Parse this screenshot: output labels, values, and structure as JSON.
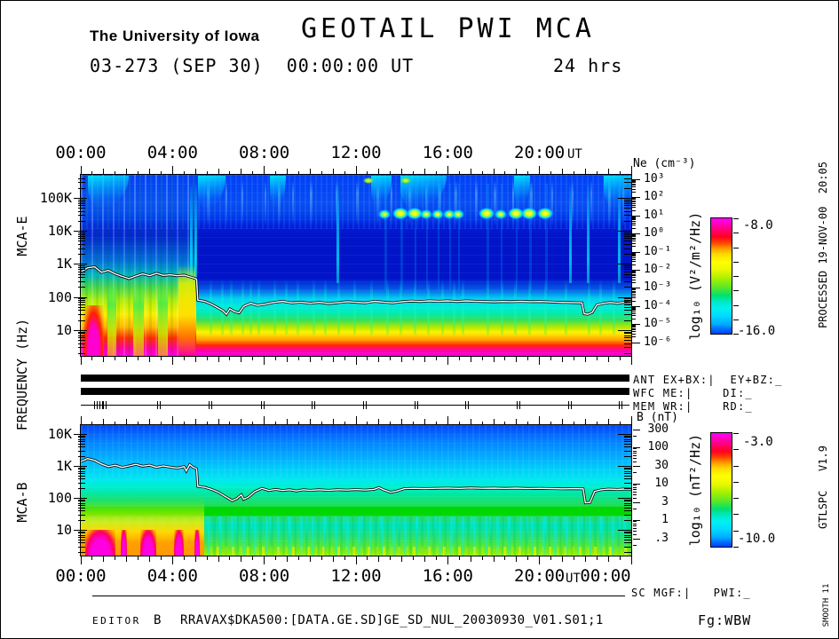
{
  "header": {
    "institution": "The University of Iowa",
    "title": "GEOTAIL  PWI  MCA",
    "date_line": "03-273 (SEP 30)  00:00:00 UT",
    "duration": "24 hrs"
  },
  "time_axis": {
    "labels": [
      "00:00",
      "04:00",
      "08:00",
      "12:00",
      "16:00",
      "20:00"
    ],
    "end_label": "00:00",
    "ut": "UT"
  },
  "left_axis": {
    "mca_e": "MCA-E",
    "shared": "FREQUENCY (Hz)",
    "mca_b": "MCA-B"
  },
  "side_notes": {
    "processed": "PROCESSED 19-NOV-00  20:05",
    "version": "GTLSPC   V1.9",
    "smooth": "SMOOTH 11"
  },
  "status": {
    "ant": "ANT EX+BX:|  EY+BZ:_",
    "wfc": "WFC ME:|    DI:_",
    "mem": "MEM WR:|    RD:_",
    "mem_event_hours": [
      0.65,
      0.9,
      1.06,
      3.4,
      5.66,
      7.93,
      10.14,
      12.4,
      14.63,
      16.85,
      19.08,
      21.32,
      23.55
    ]
  },
  "scales": {
    "ne": {
      "label": "Ne (cm⁻³)",
      "ticks": [
        "10³",
        "10²",
        "10¹",
        "10⁰",
        "10⁻¹",
        "10⁻²",
        "10⁻³",
        "10⁻⁴",
        "10⁻⁵",
        "10⁻⁶"
      ]
    },
    "b": {
      "label": "B (nT)",
      "ticks": [
        "300",
        "100",
        "30",
        "10",
        "3",
        "1",
        ".3"
      ],
      "tick_values": [
        300,
        100,
        30,
        10,
        3,
        1,
        0.3
      ]
    }
  },
  "colorbars": {
    "e": {
      "label": "log₁₀ (V²/m²/Hz)",
      "max": "-8.0",
      "min": "-16.0"
    },
    "b": {
      "label": "log₁₀ (nT²/Hz)",
      "max": "-3.0",
      "min": "-10.0"
    }
  },
  "footer": {
    "sc": "SC MGF:|   PWI:_",
    "editor_label": "EDITOR",
    "editor_value": "B",
    "file": "RRAVAX$DKA500:[DATA.GE.SD]GE_SD_NUL_20030930_V01.S01;1",
    "fg": "Fg:WBW"
  },
  "chart_data": [
    {
      "id": "mca_e",
      "type": "heatmap",
      "name": "MCA-E electric field spectrogram",
      "x": {
        "label": "UT",
        "unit": "hours",
        "range": [
          0,
          24
        ],
        "major_tick_h": 4,
        "minor_tick_h": 0.5,
        "tick_labels": [
          "00:00",
          "04:00",
          "08:00",
          "12:00",
          "16:00",
          "20:00"
        ]
      },
      "y": {
        "label": "FREQUENCY (Hz)",
        "scale": "log",
        "range_hz": [
          1.6,
          500000
        ],
        "ticks": [
          {
            "label": "100K",
            "f": 100000
          },
          {
            "label": "10K",
            "f": 10000
          },
          {
            "label": "1K",
            "f": 1000
          },
          {
            "label": "100",
            "f": 100
          },
          {
            "label": "10",
            "f": 10
          }
        ]
      },
      "z": {
        "label": "log₁₀ (V²/m²/Hz)",
        "range": [
          -16,
          -8
        ],
        "colormap": [
          "#0040FF",
          "#00A8FF",
          "#00E8F0",
          "#00E070",
          "#A8F000",
          "#FFFF00",
          "#FF9800",
          "#FF0020",
          "#FF00F0"
        ]
      },
      "aux_scale": {
        "label": "Ne (cm⁻³)",
        "tick_labels": [
          "10³",
          "10²",
          "10¹",
          "10⁰",
          "10⁻¹",
          "10⁻²",
          "10⁻³",
          "10⁻⁴",
          "10⁻⁵",
          "10⁻⁶"
        ]
      },
      "trace": {
        "name": "plasma-cutoff-trace",
        "points": [
          [
            0,
            570
          ],
          [
            0.3,
            760
          ],
          [
            0.6,
            820
          ],
          [
            0.9,
            560
          ],
          [
            1.2,
            640
          ],
          [
            1.5,
            500
          ],
          [
            1.8,
            420
          ],
          [
            2.1,
            360
          ],
          [
            2.4,
            430
          ],
          [
            2.7,
            500
          ],
          [
            3.0,
            440
          ],
          [
            3.3,
            520
          ],
          [
            3.6,
            450
          ],
          [
            3.9,
            470
          ],
          [
            4.2,
            440
          ],
          [
            4.5,
            460
          ],
          [
            4.7,
            420
          ],
          [
            4.9,
            380
          ],
          [
            5.0,
            360
          ],
          [
            5.05,
            340
          ],
          [
            5.1,
            80
          ],
          [
            5.4,
            74
          ],
          [
            5.7,
            60
          ],
          [
            6.0,
            46
          ],
          [
            6.2,
            38
          ],
          [
            6.35,
            30
          ],
          [
            6.5,
            44
          ],
          [
            6.7,
            36
          ],
          [
            6.9,
            33
          ],
          [
            7.1,
            52
          ],
          [
            7.4,
            64
          ],
          [
            7.7,
            56
          ],
          [
            8.0,
            60
          ],
          [
            8.4,
            68
          ],
          [
            8.8,
            74
          ],
          [
            9.2,
            66
          ],
          [
            9.6,
            70
          ],
          [
            10.0,
            64
          ],
          [
            10.4,
            69
          ],
          [
            10.8,
            63
          ],
          [
            11.2,
            67
          ],
          [
            11.6,
            72
          ],
          [
            12.0,
            69
          ],
          [
            12.4,
            66
          ],
          [
            12.8,
            74
          ],
          [
            13.2,
            70
          ],
          [
            13.6,
            66
          ],
          [
            14.0,
            72
          ],
          [
            14.4,
            75
          ],
          [
            14.8,
            73
          ],
          [
            15.2,
            76
          ],
          [
            15.6,
            74
          ],
          [
            16.0,
            76
          ],
          [
            16.4,
            73
          ],
          [
            16.8,
            76
          ],
          [
            17.2,
            74
          ],
          [
            17.6,
            73
          ],
          [
            18.0,
            71
          ],
          [
            18.4,
            73
          ],
          [
            18.8,
            72
          ],
          [
            19.2,
            74
          ],
          [
            19.6,
            72
          ],
          [
            20.0,
            73
          ],
          [
            20.4,
            71
          ],
          [
            20.8,
            69
          ],
          [
            21.2,
            68
          ],
          [
            21.6,
            67
          ],
          [
            21.85,
            66
          ],
          [
            21.95,
            31
          ],
          [
            22.1,
            30
          ],
          [
            22.3,
            34
          ],
          [
            22.5,
            58
          ],
          [
            22.8,
            64
          ],
          [
            23.1,
            68
          ],
          [
            23.4,
            64
          ],
          [
            23.7,
            69
          ],
          [
            24,
            67
          ]
        ]
      },
      "features": {
        "active_region": {
          "t0": 0,
          "t1": 5.05,
          "top_hz": 900
        },
        "plumes": [
          {
            "t0": 0.12,
            "t1": 1.0,
            "top_hz": 55,
            "kind": "hot"
          },
          {
            "t0": 1.15,
            "t1": 1.55,
            "top_hz": 280,
            "kind": "green"
          },
          {
            "t0": 2.3,
            "t1": 2.75,
            "top_hz": 240,
            "kind": "green"
          },
          {
            "t0": 3.35,
            "t1": 3.8,
            "top_hz": 300,
            "kind": "green"
          },
          {
            "t0": 4.25,
            "t1": 5.0,
            "top_hz": 900,
            "kind": "yellow"
          }
        ],
        "wisps": [
          {
            "t": 0.3,
            "dur": 1.8
          },
          {
            "t": 5.1,
            "dur": 1.2
          },
          {
            "t": 8.25,
            "dur": 0.7
          },
          {
            "t": 12.65,
            "dur": 0.9
          },
          {
            "t": 13.95,
            "dur": 2.0
          },
          {
            "t": 18.9,
            "dur": 0.7
          },
          {
            "t": 22.8,
            "dur": 1.7
          }
        ],
        "top_spot_hours": [
          12.55,
          14.15
        ],
        "band_streak_hours": [
          4.75,
          4.95,
          11.15,
          21.3,
          22.05,
          23.4
        ],
        "upper_streak_hours": [
          5.5,
          6.3,
          7.0,
          8.0,
          8.6,
          9.2,
          10.0,
          11.1,
          12.0,
          12.9,
          13.5,
          14.3,
          15.0,
          15.6,
          16.3,
          17.2,
          18.0,
          18.8,
          19.6,
          20.5,
          21.4,
          22.2,
          23.0,
          23.6
        ],
        "sub_streak_hours": [
          5.6,
          6.1,
          6.5,
          7.0,
          7.35,
          7.7,
          8.4,
          8.9,
          9.4,
          10.1,
          10.6,
          11.2,
          11.9,
          12.6,
          13.3,
          13.9,
          14.5,
          15.1,
          15.7,
          16.2,
          16.6,
          17.7,
          18.3,
          18.9,
          19.5,
          20.2,
          21.1,
          22.1,
          22.6,
          23.2
        ],
        "akr_dot_hours": [
          13.25,
          13.95,
          14.55,
          15.05,
          15.55,
          16.05,
          16.45,
          17.7,
          18.3,
          18.95,
          19.55,
          20.25
        ],
        "akr_bright_hours": [
          13.95,
          14.55,
          17.7,
          18.95,
          19.55,
          20.25
        ],
        "akr_dot_freq_hz": 25000
      }
    },
    {
      "id": "mca_b",
      "type": "heatmap",
      "name": "MCA-B magnetic field spectrogram",
      "x": {
        "label": "UT",
        "unit": "hours",
        "range": [
          0,
          24
        ],
        "major_tick_h": 4,
        "minor_tick_h": 0.5,
        "tick_labels": [
          "00:00",
          "04:00",
          "08:00",
          "12:00",
          "16:00",
          "20:00",
          "00:00"
        ]
      },
      "y": {
        "label": "FREQUENCY (Hz)",
        "scale": "log",
        "range_hz": [
          1.6,
          19000
        ],
        "ticks": [
          {
            "label": "10K",
            "f": 10000
          },
          {
            "label": "1K",
            "f": 1000
          },
          {
            "label": "100",
            "f": 100
          },
          {
            "label": "10",
            "f": 10
          }
        ]
      },
      "z": {
        "label": "log₁₀ (nT²/Hz)",
        "range": [
          -10,
          -3
        ],
        "colormap": [
          "#0040FF",
          "#00A8FF",
          "#00E8F0",
          "#00E070",
          "#A8F000",
          "#FFFF00",
          "#FF9800",
          "#FF0020",
          "#FF00F0"
        ]
      },
      "aux_scale": {
        "label": "B (nT)",
        "tick_labels": [
          "300",
          "100",
          "30",
          "10",
          "3",
          "1",
          ".3"
        ]
      },
      "trace": {
        "name": "cyclotron-trace",
        "points": [
          [
            0,
            1380
          ],
          [
            0.3,
            1700
          ],
          [
            0.6,
            1500
          ],
          [
            0.9,
            1150
          ],
          [
            1.2,
            950
          ],
          [
            1.5,
            1050
          ],
          [
            1.8,
            900
          ],
          [
            2.1,
            1000
          ],
          [
            2.4,
            1120
          ],
          [
            2.7,
            980
          ],
          [
            3.0,
            1060
          ],
          [
            3.3,
            900
          ],
          [
            3.6,
            1000
          ],
          [
            3.9,
            920
          ],
          [
            4.2,
            860
          ],
          [
            4.5,
            950
          ],
          [
            4.6,
            700
          ],
          [
            4.75,
            1100
          ],
          [
            4.9,
            900
          ],
          [
            5.0,
            850
          ],
          [
            5.05,
            800
          ],
          [
            5.1,
            230
          ],
          [
            5.4,
            215
          ],
          [
            5.7,
            185
          ],
          [
            6.0,
            150
          ],
          [
            6.3,
            110
          ],
          [
            6.6,
            82
          ],
          [
            6.8,
            95
          ],
          [
            7.0,
            125
          ],
          [
            7.1,
            90
          ],
          [
            7.3,
            105
          ],
          [
            7.6,
            160
          ],
          [
            7.9,
            200
          ],
          [
            8.2,
            170
          ],
          [
            8.5,
            185
          ],
          [
            8.8,
            170
          ],
          [
            9.1,
            180
          ],
          [
            9.4,
            165
          ],
          [
            9.7,
            180
          ],
          [
            10.0,
            172
          ],
          [
            10.4,
            180
          ],
          [
            10.8,
            172
          ],
          [
            11.2,
            180
          ],
          [
            11.6,
            176
          ],
          [
            12.0,
            182
          ],
          [
            12.4,
            176
          ],
          [
            12.8,
            186
          ],
          [
            13.0,
            210
          ],
          [
            13.2,
            180
          ],
          [
            13.5,
            150
          ],
          [
            13.8,
            165
          ],
          [
            14.1,
            195
          ],
          [
            14.5,
            200
          ],
          [
            15.0,
            196
          ],
          [
            15.5,
            200
          ],
          [
            16.0,
            202
          ],
          [
            16.5,
            198
          ],
          [
            17.0,
            205
          ],
          [
            17.5,
            200
          ],
          [
            18.0,
            202
          ],
          [
            18.5,
            198
          ],
          [
            19.0,
            202
          ],
          [
            19.5,
            197
          ],
          [
            20.0,
            200
          ],
          [
            20.5,
            196
          ],
          [
            21.0,
            192
          ],
          [
            21.5,
            194
          ],
          [
            21.9,
            192
          ],
          [
            22.0,
            70
          ],
          [
            22.2,
            72
          ],
          [
            22.4,
            160
          ],
          [
            22.7,
            180
          ],
          [
            23.0,
            188
          ],
          [
            23.4,
            184
          ],
          [
            23.7,
            190
          ],
          [
            24,
            188
          ]
        ]
      },
      "features": {
        "green_band_hz": [
          28,
          48
        ],
        "yellow_left": {
          "t0": 0,
          "t1": 5.4
        },
        "magenta_blobs": [
          {
            "t0": 0.18,
            "t1": 1.5
          },
          {
            "t0": 1.75,
            "t1": 2.0
          },
          {
            "t0": 2.6,
            "t1": 3.3
          },
          {
            "t0": 4.05,
            "t1": 4.5
          },
          {
            "t0": 4.95,
            "t1": 5.2
          }
        ],
        "column_streak_hours": [
          5.4,
          6.0,
          6.7,
          7.4,
          8.2,
          9.0,
          9.8,
          10.6,
          11.4,
          12.2,
          13.0,
          13.8,
          14.6,
          15.4,
          16.2,
          17.0,
          17.8,
          18.6,
          19.4,
          20.2,
          21.0,
          21.8,
          22.6,
          23.4
        ]
      }
    }
  ]
}
